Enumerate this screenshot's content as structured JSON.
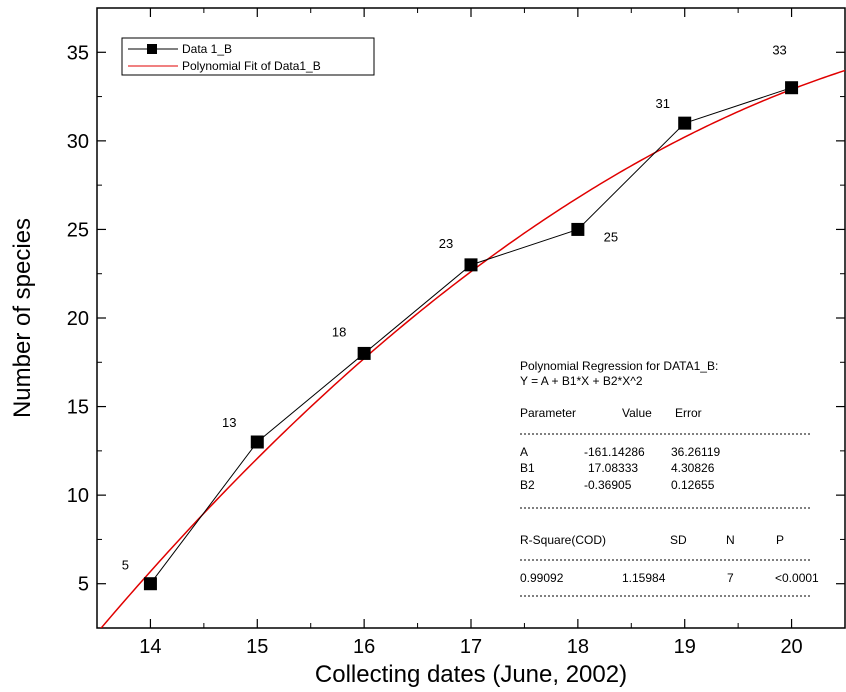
{
  "chart_data": {
    "type": "scatter",
    "xlabel": "Collecting dates (June, 2002)",
    "ylabel": "Number of species",
    "xlim": [
      13.5,
      20.5
    ],
    "ylim": [
      2.5,
      37.5
    ],
    "x_ticks": [
      14,
      15,
      16,
      17,
      18,
      19,
      20
    ],
    "y_ticks": [
      5,
      10,
      15,
      20,
      25,
      30,
      35
    ],
    "grid": false,
    "legend_position": "top-left",
    "series": [
      {
        "name": "Data 1_B",
        "style": "line-with-square-markers",
        "color": "#000000",
        "x": [
          14,
          15,
          16,
          17,
          18,
          19,
          20
        ],
        "values": [
          5,
          13,
          18,
          23,
          25,
          31,
          33
        ],
        "labels": [
          "5",
          "13",
          "18",
          "23",
          "25",
          "31",
          "33"
        ]
      },
      {
        "name": "Polynomial Fit of Data1_B",
        "style": "line",
        "color": "#e00000",
        "fit": {
          "A": -161.14286,
          "B1": 17.08333,
          "B2": -0.36905
        }
      }
    ],
    "annotation": {
      "title_line1": "Polynomial Regression for DATA1_B:",
      "title_line2": "Y = A + B1*X + B2*X^2",
      "param_headers": [
        "Parameter",
        "Value",
        "Error"
      ],
      "params": [
        [
          "A",
          "-161.14286",
          "36.26119"
        ],
        [
          "B1",
          "17.08333",
          "4.30826"
        ],
        [
          "B2",
          "-0.36905",
          "0.12655"
        ]
      ],
      "stat_headers": [
        "R-Square(COD)",
        "SD",
        "N",
        "P"
      ],
      "stats": [
        "0.99092",
        "1.15984",
        "7",
        "<0.0001"
      ],
      "separator": "------------------------------------------------------------"
    }
  }
}
